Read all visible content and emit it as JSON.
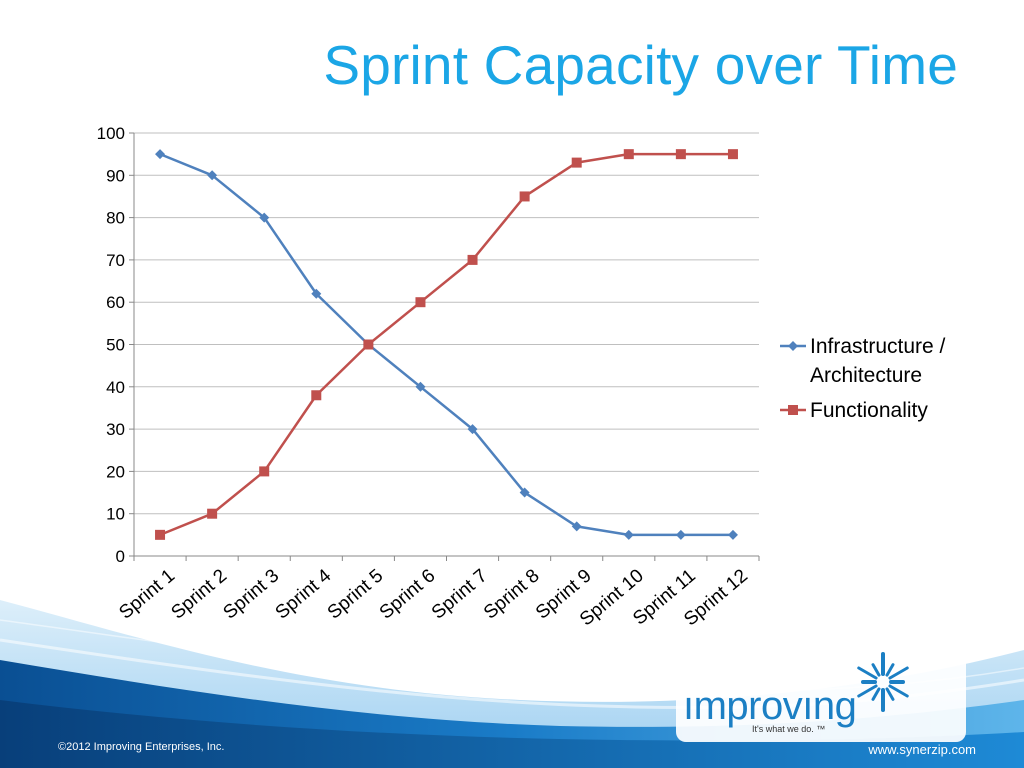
{
  "slide": {
    "title": "Sprint Capacity over Time",
    "copyright": "©2012 Improving Enterprises, Inc.",
    "website": "www.synerzip.com",
    "logo_text": "ımprovıng",
    "logo_tagline": "It's what we do. ™"
  },
  "colors": {
    "title": "#1ba6e6",
    "series_1": "#4f81bd",
    "series_2": "#c0504d",
    "gridline": "#bfbfbf",
    "logo": "#1b7fc4",
    "wave_dark": "#0d5fa6"
  },
  "icons": {
    "logo_mark": "starburst-icon"
  },
  "chart_data": {
    "type": "line",
    "categories": [
      "Sprint 1",
      "Sprint 2",
      "Sprint 3",
      "Sprint 4",
      "Sprint 5",
      "Sprint 6",
      "Sprint 7",
      "Sprint 8",
      "Sprint 9",
      "Sprint 10",
      "Sprint 11",
      "Sprint 12"
    ],
    "series": [
      {
        "name": "Infrastructure / Architecture",
        "name_lines": [
          "Infrastructure /",
          "Architecture"
        ],
        "marker": "diamond",
        "values": [
          95,
          90,
          80,
          62,
          50,
          40,
          30,
          15,
          7,
          5,
          5,
          5
        ]
      },
      {
        "name": "Functionality",
        "name_lines": [
          "Functionality"
        ],
        "marker": "square",
        "values": [
          5,
          10,
          20,
          38,
          50,
          60,
          70,
          85,
          93,
          95,
          95,
          95
        ]
      }
    ],
    "ylim": [
      0,
      100
    ],
    "yticks": [
      0,
      10,
      20,
      30,
      40,
      50,
      60,
      70,
      80,
      90,
      100
    ],
    "grid": true,
    "legend": "right",
    "xlabel": "",
    "ylabel": ""
  }
}
